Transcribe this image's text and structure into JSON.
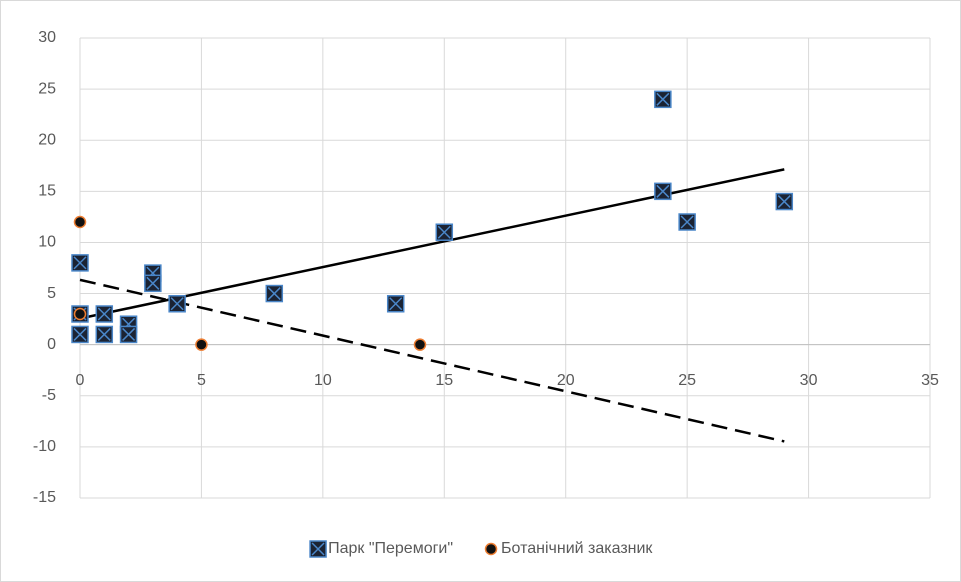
{
  "chart_data": {
    "type": "scatter",
    "xlim": [
      0,
      35
    ],
    "xticks": [
      0,
      5,
      10,
      15,
      20,
      25,
      30,
      35
    ],
    "ylim": [
      -15,
      30
    ],
    "yticks": [
      -15,
      -10,
      -5,
      0,
      5,
      10,
      15,
      20,
      25,
      30
    ],
    "grid": true,
    "legend": "bottom",
    "trendline": true,
    "series": [
      {
        "name": "Парк \"Перемоги\"",
        "color": "#4a86c8",
        "marker": "square-x",
        "line": "solid",
        "x": [
          0,
          0,
          0,
          1,
          1,
          2,
          2,
          3,
          3,
          4,
          8,
          13,
          15,
          24,
          24,
          25,
          29
        ],
        "values": [
          8,
          3,
          1,
          3,
          1,
          2,
          1,
          7,
          6,
          4,
          5,
          4,
          11,
          24,
          15,
          12,
          14
        ]
      },
      {
        "name": "Ботанічний заказник",
        "color": "#ed7d31",
        "marker": "circle",
        "line": "dashed",
        "x": [
          0,
          0,
          5,
          14
        ],
        "values": [
          12,
          3,
          0,
          0
        ]
      }
    ]
  }
}
